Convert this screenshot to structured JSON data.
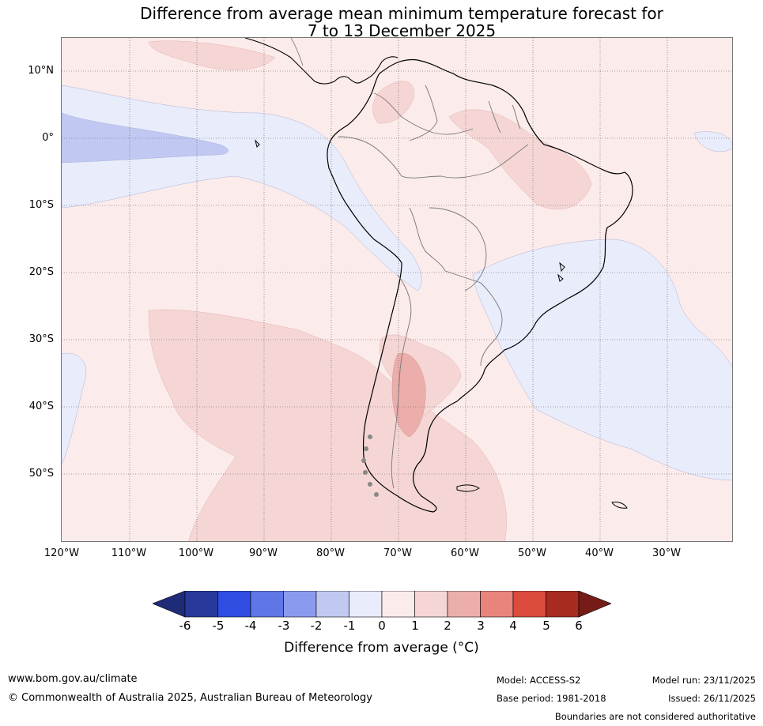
{
  "title": {
    "line1": "Difference from average mean minimum temperature forecast for",
    "line2": "7 to 13 December 2025"
  },
  "map": {
    "lat_labels": [
      "10°N",
      "0°",
      "10°S",
      "20°S",
      "30°S",
      "40°S",
      "50°S"
    ],
    "lon_labels": [
      "120°W",
      "110°W",
      "100°W",
      "90°W",
      "80°W",
      "70°W",
      "60°W",
      "50°W",
      "40°W",
      "30°W"
    ],
    "colors": {
      "anom_m1": "#e9ecfb",
      "anom_m2": "#c1c9f3",
      "anom_p1": "#fbebea",
      "anom_p2": "#f5d6d5",
      "anom_p3": "#ecaeab",
      "land_border": "#777777",
      "coast": "#000000"
    }
  },
  "legend": {
    "tick_labels": [
      "-6",
      "-5",
      "-4",
      "-3",
      "-2",
      "-1",
      "0",
      "1",
      "2",
      "3",
      "4",
      "5",
      "6"
    ],
    "colors": [
      "#273a9c",
      "#2f4de0",
      "#5f77e6",
      "#8a9bef",
      "#c1c9f3",
      "#e9ecfb",
      "#fbebea",
      "#f5d6d5",
      "#ecaeab",
      "#e8847c",
      "#db4b3e",
      "#a82b20"
    ],
    "under_color": "#1e2c78",
    "over_color": "#761c18",
    "title": "Difference from average (°C)"
  },
  "footer": {
    "url": "www.bom.gov.au/climate",
    "copyright": "© Commonwealth of Australia 2025, Australian Bureau of Meteorology",
    "model": "Model: ACCESS-S2",
    "base_period": "Base period: 1981-2018",
    "model_run": "Model run: 23/11/2025",
    "issued": "Issued: 26/11/2025",
    "disclaimer": "Boundaries are not considered authoritative"
  }
}
